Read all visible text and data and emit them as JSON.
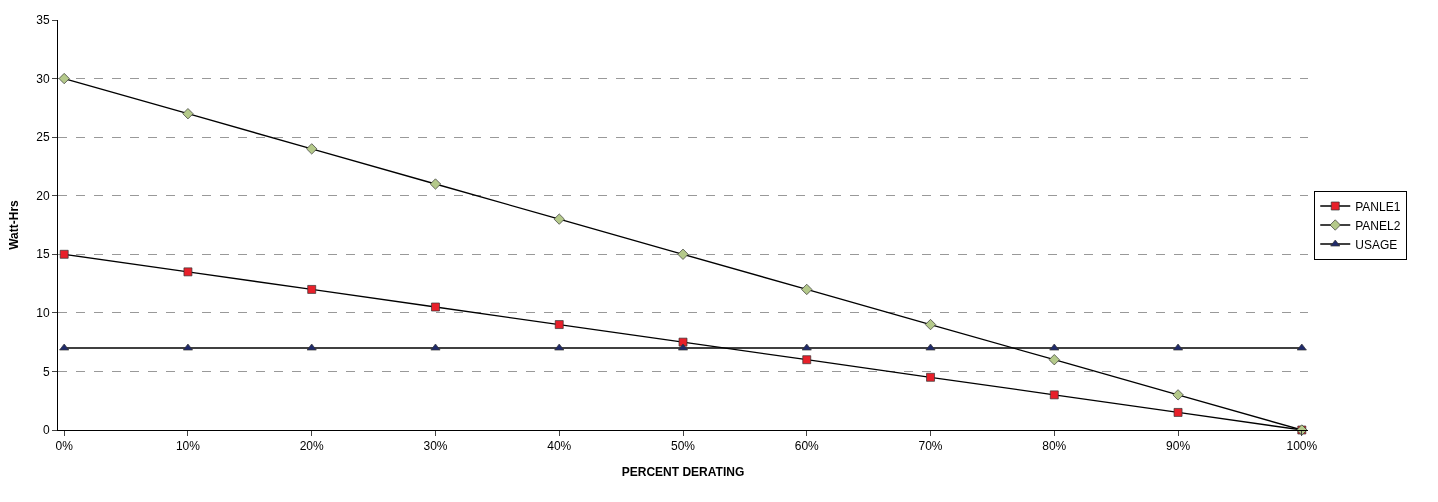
{
  "chart_data": {
    "type": "line",
    "xlabel": "PERCENT DERATING",
    "ylabel": "Watt-Hrs",
    "categories": [
      "0%",
      "10%",
      "20%",
      "30%",
      "40%",
      "50%",
      "60%",
      "70%",
      "80%",
      "90%",
      "100%"
    ],
    "series": [
      {
        "name": "PANLE1",
        "color": "#e8202a",
        "marker": "square",
        "values": [
          15,
          13.5,
          12,
          10.5,
          9,
          7.5,
          6,
          4.5,
          3,
          1.5,
          0
        ]
      },
      {
        "name": "PANEL2",
        "color": "#b4c98a",
        "marker": "diamond",
        "values": [
          30,
          27,
          24,
          21,
          18,
          15,
          12,
          9,
          6,
          3,
          0
        ]
      },
      {
        "name": "USAGE",
        "color": "#1f2a6b",
        "marker": "triangle",
        "values": [
          7,
          7,
          7,
          7,
          7,
          7,
          7,
          7,
          7,
          7,
          7
        ]
      }
    ],
    "ylim": [
      0,
      35
    ],
    "yticks": [
      0,
      5,
      10,
      15,
      20,
      25,
      30,
      35
    ],
    "grid": "y",
    "legend": "right",
    "line_style": "solid"
  }
}
